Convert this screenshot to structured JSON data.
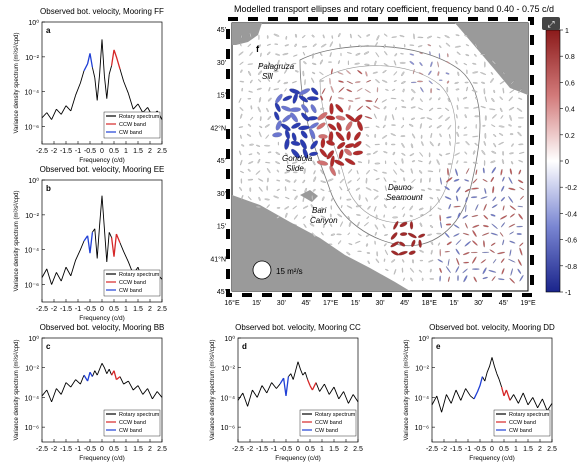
{
  "chart_data": [
    {
      "type": "line",
      "panel_letter": "a",
      "title": "Observed bot. velocity, Mooring FF",
      "xlabel": "Frequency (c/d)",
      "ylabel": "Variance density spectrum (m²/s²/cpd)",
      "xlim": [
        -2.5,
        2.5
      ],
      "ylim_log10": [
        -7,
        0
      ],
      "yscale": "log",
      "xticks": [
        "-2.5",
        "-2",
        "-1.5",
        "-1",
        "-0.5",
        "0",
        "0.5",
        "1",
        "1.5",
        "2",
        "2.5"
      ],
      "yticks": [
        "10⁰",
        "10⁻²",
        "10⁻⁴",
        "10⁻⁶"
      ],
      "legend": [
        "Rotary spectrum",
        "CCW band",
        "CW band"
      ],
      "legend_colors": [
        "#000000",
        "#d62728",
        "#1f3fd6"
      ],
      "bands": {
        "cw": [
          -0.75,
          -0.4
        ],
        "ccw": [
          0.4,
          0.75
        ]
      },
      "series": [
        {
          "x": [
            -2.5,
            -2.3,
            -2.1,
            -1.9,
            -1.7,
            -1.5,
            -1.3,
            -1.1,
            -0.9,
            -0.75,
            -0.6,
            -0.5,
            -0.4,
            -0.3,
            -0.2,
            -0.1,
            0,
            0.1,
            0.2,
            0.3,
            0.4,
            0.5,
            0.6,
            0.75,
            0.9,
            1.1,
            1.3,
            1.5,
            1.7,
            1.9,
            2.1,
            2.3,
            2.5
          ],
          "log10_y": [
            -5.5,
            -5.2,
            -5.6,
            -5.0,
            -5.3,
            -4.8,
            -5.1,
            -4.2,
            -3.5,
            -2.8,
            -2.4,
            -1.8,
            -2.6,
            -3.2,
            -4.5,
            -3.0,
            -1.0,
            -3.1,
            -4.4,
            -3.0,
            -2.5,
            -1.6,
            -2.0,
            -2.7,
            -3.4,
            -4.1,
            -5.0,
            -4.7,
            -5.2,
            -4.9,
            -5.4,
            -5.1,
            -5.6
          ]
        }
      ]
    },
    {
      "type": "line",
      "panel_letter": "b",
      "title": "Observed bot. velocity, Mooring EE",
      "xlabel": "Frequency (c/d)",
      "ylabel": "Variance density spectrum (m²/s²/cpd)",
      "xlim": [
        -2.5,
        2.5
      ],
      "ylim_log10": [
        -7,
        0
      ],
      "yscale": "log",
      "xticks": [
        "-2.5",
        "-2",
        "-1.5",
        "-1",
        "-0.5",
        "0",
        "0.5",
        "1",
        "1.5",
        "2",
        "2.5"
      ],
      "yticks": [
        "10⁰",
        "10⁻²",
        "10⁻⁴",
        "10⁻⁶"
      ],
      "legend": [
        "Rotary spectrum",
        "CCW band",
        "CW band"
      ],
      "legend_colors": [
        "#000000",
        "#d62728",
        "#1f3fd6"
      ],
      "bands": {
        "cw": [
          -0.75,
          -0.4
        ],
        "ccw": [
          0.4,
          0.75
        ]
      },
      "series": [
        {
          "x": [
            -2.5,
            -2.3,
            -2.1,
            -1.9,
            -1.7,
            -1.5,
            -1.3,
            -1.1,
            -0.9,
            -0.75,
            -0.6,
            -0.5,
            -0.4,
            -0.3,
            -0.2,
            -0.1,
            0,
            0.1,
            0.2,
            0.3,
            0.4,
            0.5,
            0.6,
            0.75,
            0.9,
            1.1,
            1.3,
            1.5,
            1.7,
            1.9,
            2.1,
            2.3,
            2.5
          ],
          "log10_y": [
            -5.6,
            -5.1,
            -6.0,
            -5.3,
            -5.8,
            -5.0,
            -5.5,
            -4.6,
            -4.0,
            -3.5,
            -3.2,
            -4.2,
            -3.0,
            -2.8,
            -4.5,
            -2.6,
            -0.9,
            -2.8,
            -4.7,
            -3.0,
            -3.3,
            -4.4,
            -3.1,
            -3.6,
            -4.1,
            -4.7,
            -5.4,
            -5.0,
            -5.8,
            -5.2,
            -6.1,
            -5.4,
            -5.7
          ]
        }
      ]
    },
    {
      "type": "line",
      "panel_letter": "c",
      "title": "Observed bot. velocity, Mooring BB",
      "xlabel": "Frequency (c/d)",
      "ylabel": "Variance density spectrum (m²/s²/cpd)",
      "xlim": [
        -2.5,
        2.5
      ],
      "ylim_log10": [
        -7,
        0
      ],
      "yscale": "log",
      "xticks": [
        "-2.5",
        "-2",
        "-1.5",
        "-1",
        "-0.5",
        "0",
        "0.5",
        "1",
        "1.5",
        "2",
        "2.5"
      ],
      "yticks": [
        "10⁰",
        "10⁻²",
        "10⁻⁴",
        "10⁻⁶"
      ],
      "legend": [
        "Rotary spectrum",
        "CCW band",
        "CW band"
      ],
      "legend_colors": [
        "#000000",
        "#d62728",
        "#1f3fd6"
      ],
      "bands": {
        "cw": [
          -0.75,
          -0.4
        ],
        "ccw": [
          0.4,
          0.75
        ]
      },
      "series": [
        {
          "x": [
            -2.5,
            -2.3,
            -2.1,
            -1.9,
            -1.7,
            -1.5,
            -1.3,
            -1.1,
            -0.9,
            -0.75,
            -0.6,
            -0.5,
            -0.4,
            -0.3,
            -0.2,
            -0.1,
            0,
            0.1,
            0.2,
            0.3,
            0.4,
            0.5,
            0.6,
            0.75,
            0.9,
            1.1,
            1.3,
            1.5,
            1.7,
            1.9,
            2.1,
            2.3,
            2.5
          ],
          "log10_y": [
            -3.9,
            -3.5,
            -4.3,
            -3.4,
            -3.8,
            -3.0,
            -3.3,
            -2.8,
            -3.1,
            -2.5,
            -2.9,
            -2.3,
            -2.6,
            -2.2,
            -2.5,
            -2.1,
            -1.7,
            -2.0,
            -2.4,
            -2.1,
            -2.5,
            -2.2,
            -2.8,
            -2.6,
            -3.1,
            -2.9,
            -3.5,
            -3.2,
            -3.8,
            -3.4,
            -4.1,
            -3.6,
            -4.0
          ]
        }
      ]
    },
    {
      "type": "line",
      "panel_letter": "d",
      "title": "Observed bot. velocity, Mooring CC",
      "xlabel": "Frequency (c/d)",
      "ylabel": "Variance density spectrum (m²/s²/cpd)",
      "xlim": [
        -2.5,
        2.5
      ],
      "ylim_log10": [
        -7,
        0
      ],
      "yscale": "log",
      "xticks": [
        "-2.5",
        "-2",
        "-1.5",
        "-1",
        "-0.5",
        "0",
        "0.5",
        "1",
        "1.5",
        "2",
        "2.5"
      ],
      "yticks": [
        "10⁰",
        "10⁻²",
        "10⁻⁴",
        "10⁻⁶"
      ],
      "legend": [
        "Rotary spectrum",
        "CCW band",
        "CW band"
      ],
      "legend_colors": [
        "#000000",
        "#d62728",
        "#1f3fd6"
      ],
      "bands": {
        "cw": [
          -0.75,
          -0.4
        ],
        "ccw": [
          0.4,
          0.75
        ]
      },
      "series": [
        {
          "x": [
            -2.5,
            -2.3,
            -2.1,
            -1.9,
            -1.7,
            -1.5,
            -1.3,
            -1.1,
            -0.9,
            -0.75,
            -0.6,
            -0.5,
            -0.4,
            -0.3,
            -0.2,
            -0.1,
            0,
            0.1,
            0.2,
            0.3,
            0.4,
            0.5,
            0.6,
            0.75,
            0.9,
            1.1,
            1.3,
            1.5,
            1.7,
            1.9,
            2.1,
            2.3,
            2.5
          ],
          "log10_y": [
            -4.2,
            -3.7,
            -4.6,
            -3.5,
            -4.0,
            -3.2,
            -3.7,
            -3.0,
            -3.4,
            -3.1,
            -2.7,
            -3.9,
            -2.6,
            -2.4,
            -2.8,
            -2.2,
            -1.6,
            -2.1,
            -2.5,
            -2.3,
            -2.8,
            -3.2,
            -3.5,
            -3.0,
            -3.6,
            -3.1,
            -3.8,
            -3.3,
            -4.1,
            -3.6,
            -4.4,
            -3.8,
            -4.3
          ]
        }
      ]
    },
    {
      "type": "line",
      "panel_letter": "e",
      "title": "Observed bot. velocity, Mooring DD",
      "xlabel": "Frequency (c/d)",
      "ylabel": "Variance density spectrum (m²/s²/cpd)",
      "xlim": [
        -2.5,
        2.5
      ],
      "ylim_log10": [
        -7,
        0
      ],
      "yscale": "log",
      "xticks": [
        "-2.5",
        "-2",
        "-1.5",
        "-1",
        "-0.5",
        "0",
        "0.5",
        "1",
        "1.5",
        "2",
        "2.5"
      ],
      "yticks": [
        "10⁰",
        "10⁻²",
        "10⁻⁴",
        "10⁻⁶"
      ],
      "legend": [
        "Rotary spectrum",
        "CCW band",
        "CW band"
      ],
      "legend_colors": [
        "#000000",
        "#d62728",
        "#1f3fd6"
      ],
      "bands": {
        "cw": [
          -0.75,
          -0.4
        ],
        "ccw": [
          0.4,
          0.75
        ]
      },
      "series": [
        {
          "x": [
            -2.5,
            -2.3,
            -2.1,
            -1.9,
            -1.7,
            -1.5,
            -1.3,
            -1.1,
            -0.9,
            -0.75,
            -0.6,
            -0.5,
            -0.4,
            -0.3,
            -0.2,
            -0.1,
            0,
            0.1,
            0.2,
            0.3,
            0.4,
            0.5,
            0.6,
            0.75,
            0.9,
            1.1,
            1.3,
            1.5,
            1.7,
            1.9,
            2.1,
            2.3,
            2.5
          ],
          "log10_y": [
            -4.5,
            -3.9,
            -5.0,
            -3.8,
            -4.4,
            -3.5,
            -4.2,
            -3.4,
            -3.9,
            -4.1,
            -3.6,
            -3.2,
            -2.6,
            -2.9,
            -2.3,
            -1.9,
            -1.3,
            -1.9,
            -2.4,
            -2.8,
            -3.3,
            -3.9,
            -3.5,
            -4.2,
            -3.8,
            -4.4,
            -3.7,
            -4.5,
            -4.0,
            -4.7,
            -4.1,
            -4.9,
            -4.4
          ]
        }
      ]
    }
  ],
  "map": {
    "panel_letter": "f",
    "title": "Modelled transport ellipses and rotary coefficient, frequency band 0.40 - 0.75 c/d",
    "lon_ticks": [
      "16°E",
      "15'",
      "30'",
      "45'",
      "17°E",
      "15'",
      "30'",
      "45'",
      "18°E",
      "15'",
      "30'",
      "45'",
      "19°E"
    ],
    "lat_ticks": [
      "45'",
      "30'",
      "15'",
      "42°N",
      "45'",
      "30'",
      "15'",
      "41°N",
      "45'"
    ],
    "place_labels": [
      "Palagruza Sill",
      "Gondola Slide",
      "Dauno Seamount",
      "Bari Canyon"
    ],
    "scale_label": "15 m²/s",
    "colorbar_ticks": [
      "1",
      "0.8",
      "0.6",
      "0.4",
      "0.2",
      "0",
      "-0.2",
      "-0.4",
      "-0.6",
      "-0.8",
      "-1"
    ],
    "colorbar_colors": [
      "#a01c1c",
      "#ffffff",
      "#1c2aa0"
    ]
  }
}
